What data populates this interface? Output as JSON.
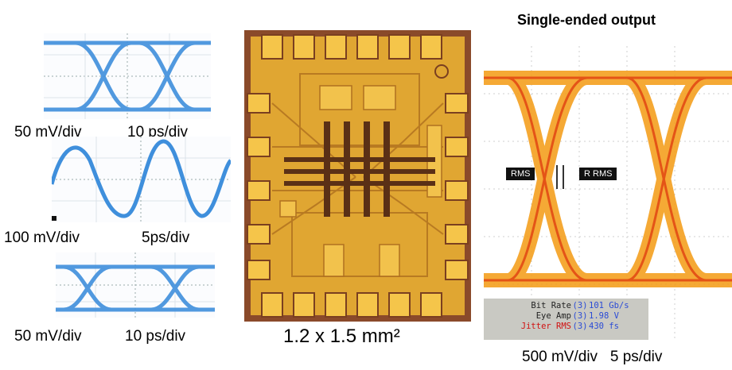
{
  "title": "Single-ended output",
  "left_scopes": [
    {
      "label_v": "50 mV/div",
      "label_t": "10 ps/div",
      "kind": "eye"
    },
    {
      "label_v": "100 mV/div",
      "label_t": "5ps/div",
      "kind": "sine"
    },
    {
      "label_v": "50 mV/div",
      "label_t": "10 ps/div",
      "kind": "eye"
    }
  ],
  "chip": {
    "size_label": "1.2 x 1.5 mm²"
  },
  "big_eye": {
    "marker_left": "RMS",
    "marker_right": "R RMS",
    "bottom_label": "500 mV/div   5 ps/div",
    "readouts": [
      {
        "name": "Bit Rate",
        "idx": "(3)",
        "value": "101 Gb/s"
      },
      {
        "name": "Eye Amp",
        "idx": "(3)",
        "value": "1.98 V"
      },
      {
        "name": "Jitter RMS",
        "idx": "(3)",
        "value": "430 fs"
      }
    ]
  },
  "colors": {
    "trace_blue": "#3f8fdc",
    "chip_gold": "#e8b23a",
    "chip_pad": "#8a4a2a",
    "eye_orange": "#f4a020",
    "eye_red": "#e04010"
  }
}
